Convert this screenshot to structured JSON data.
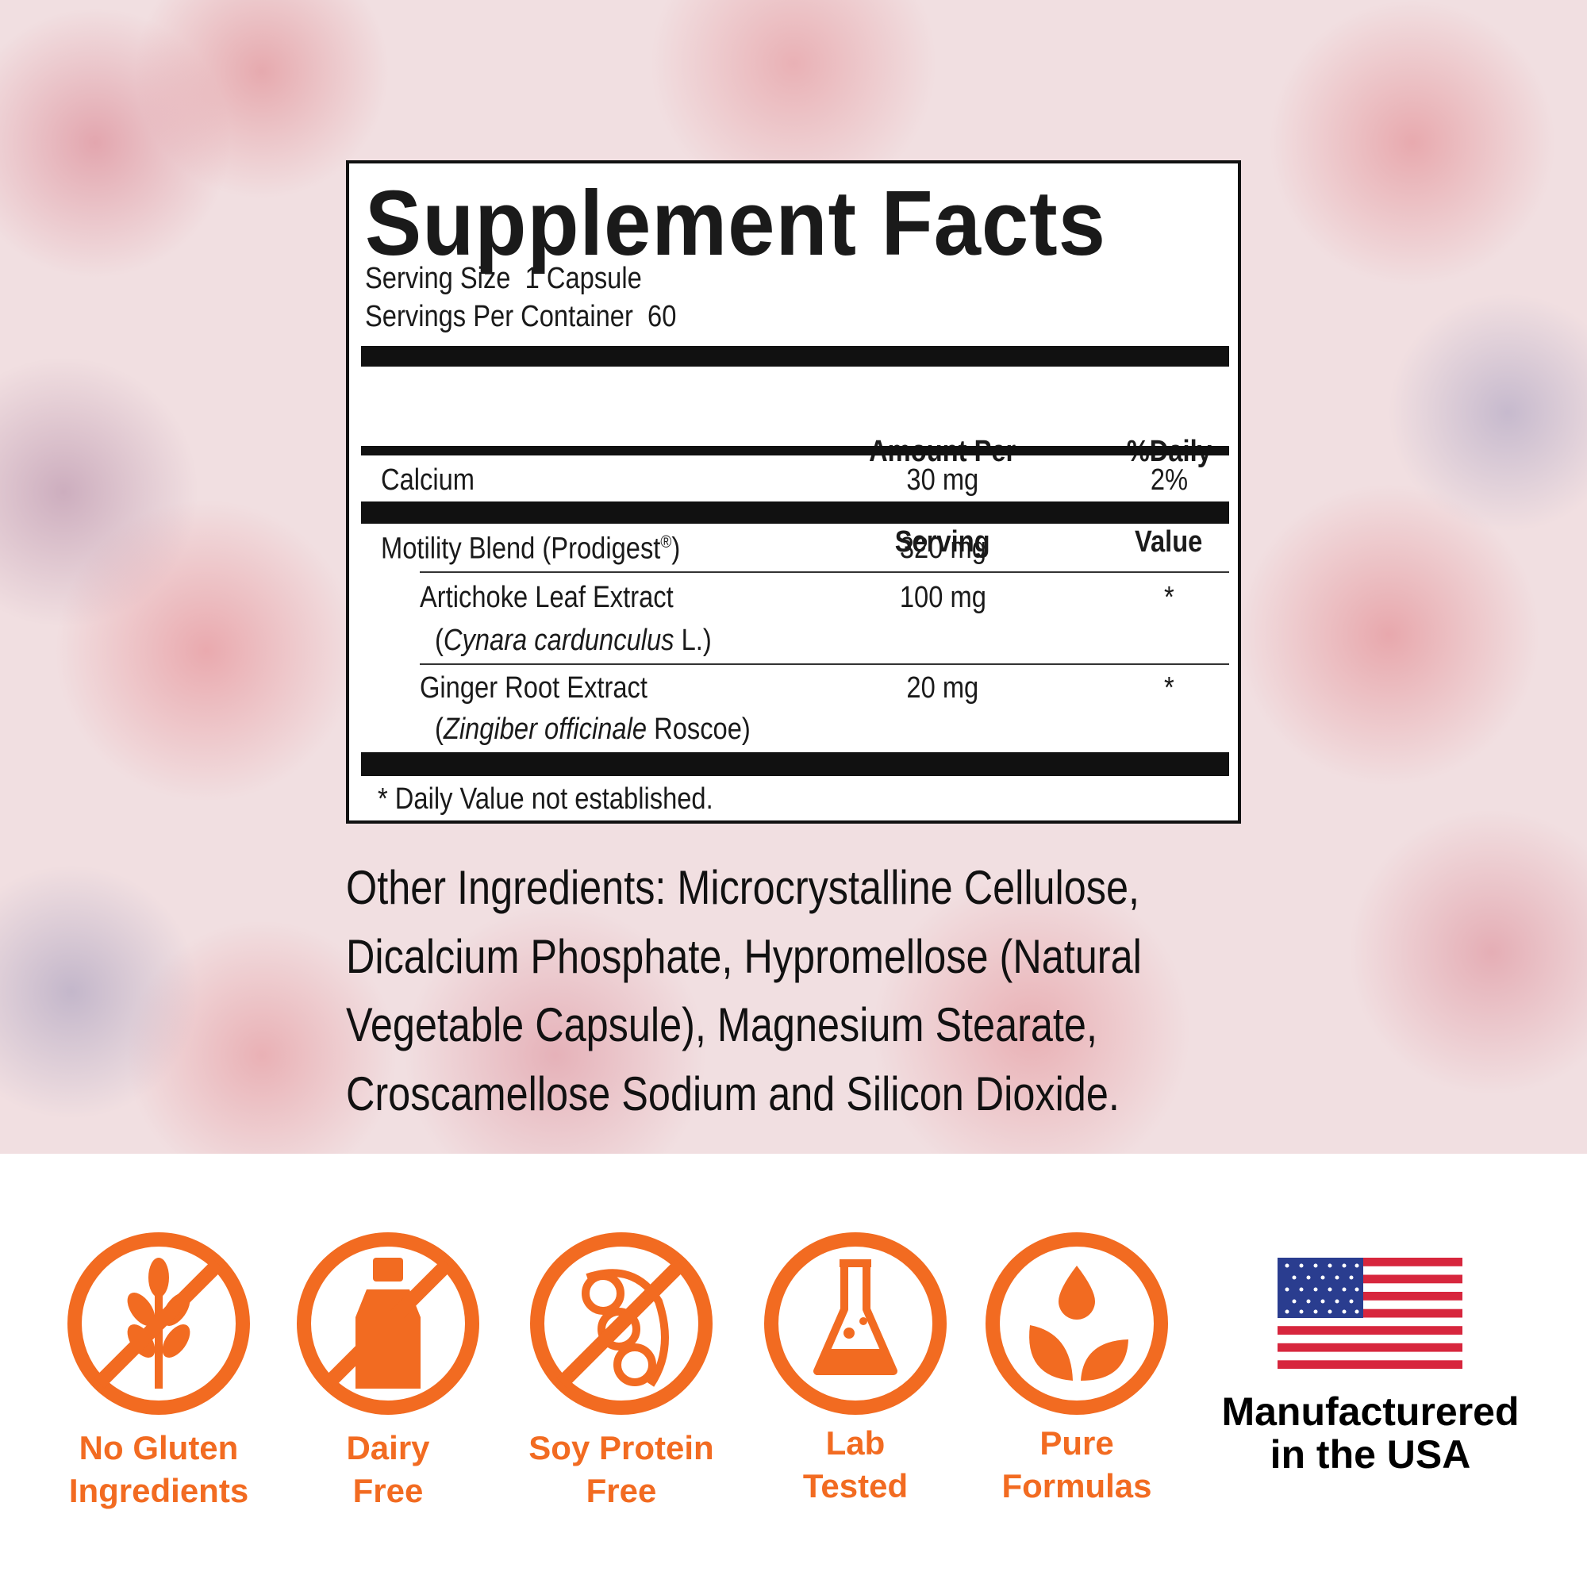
{
  "label": {
    "title": "Supplement Facts",
    "serving_size": "Serving Size  1 Capsule",
    "servings_per_container": "Servings Per Container  60",
    "header": {
      "amount": [
        "Amount Per",
        "Serving"
      ],
      "daily_value": [
        "%Daily",
        "Value"
      ]
    },
    "rows": [
      {
        "name": "Calcium",
        "amount": "30 mg",
        "daily_value": "2%"
      },
      {
        "name": "Motility Blend (Prodigest",
        "mark": "®",
        "name_end": ")",
        "amount": "320 mg"
      },
      {
        "name": "Artichoke Leaf Extract",
        "source_open": "(",
        "source_latin": "Cynara cardunculus",
        "source_close": " L.)",
        "amount": "100 mg",
        "daily_value": "*"
      },
      {
        "name": "Ginger Root Extract",
        "source_open": "(",
        "source_latin": "Zingiber officinale",
        "source_close": " Roscoe)",
        "amount": "20 mg",
        "daily_value": "*"
      }
    ],
    "footnote": "* Daily Value not established."
  },
  "other_ingredients": [
    "Other Ingredients: Microcrystalline Cellulose,",
    "Dicalcium Phosphate, Hypromellose (Natural",
    "Vegetable Capsule), Magnesium Stearate,",
    "Croscamellose Sodium and Silicon Dioxide."
  ],
  "badges": [
    {
      "lines": [
        "No Gluten",
        "Ingredients"
      ]
    },
    {
      "lines": [
        "Dairy",
        "Free"
      ]
    },
    {
      "lines": [
        "Soy Protein",
        "Free"
      ]
    },
    {
      "lines": [
        "Lab",
        "Tested"
      ]
    },
    {
      "lines": [
        "Pure",
        "Formulas"
      ]
    }
  ],
  "usa": {
    "lines": [
      "Manufacturered",
      "in the USA"
    ]
  }
}
